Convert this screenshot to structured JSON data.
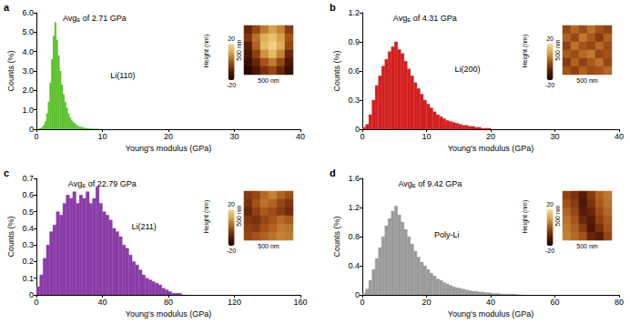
{
  "chart_data": [
    {
      "type": "histogram",
      "panel": "a",
      "label": "Li(110)",
      "avg_label": "Avg",
      "avg_subscript": "E",
      "avg_text": "of 2.71 GPa",
      "x_label": "Young's modulus (GPa)",
      "y_label": "Counts (%)",
      "color": "#5cc12e",
      "bins": [
        0,
        0.25,
        0.5,
        0.75,
        1,
        1.25,
        1.5,
        1.75,
        2,
        2.25,
        2.5,
        2.75,
        3,
        3.25,
        3.5,
        3.75,
        4,
        4.25,
        4.5,
        4.75,
        5,
        5.25,
        5.5,
        5.75,
        6,
        6.25,
        6.5,
        6.75,
        7,
        7.25,
        7.5,
        7.75,
        8,
        8.25,
        8.5,
        8.75,
        9,
        9.25,
        9.5,
        9.75,
        10
      ],
      "counts": [
        0,
        0.02,
        0.05,
        0.1,
        0.2,
        0.4,
        0.8,
        1.4,
        2.4,
        3.6,
        4.8,
        5.5,
        4.6,
        3.8,
        3.0,
        2.3,
        1.8,
        1.4,
        1.1,
        0.8,
        0.6,
        0.45,
        0.35,
        0.28,
        0.2,
        0.15,
        0.12,
        0.1,
        0.08,
        0.06,
        0.05,
        0.04,
        0.03,
        0.02,
        0.02,
        0.01,
        0.01,
        0.01,
        0,
        0
      ],
      "xlim": [
        0,
        40
      ],
      "xticks": [
        0,
        10,
        20,
        30,
        40
      ],
      "ylim": [
        0,
        6
      ],
      "yticks": [
        0,
        {
          "value": 1,
          "label": "1.0"
        },
        {
          "value": 2,
          "label": "2.0"
        },
        {
          "value": 3,
          "label": "3.0"
        },
        {
          "value": 4,
          "label": "4.0"
        },
        {
          "value": 5,
          "label": "5.0"
        },
        {
          "value": 6,
          "label": "6.0"
        }
      ],
      "grid": false,
      "inset": {
        "type": "heatmap",
        "cells": [
          [
            -8,
            -2,
            5,
            10,
            6,
            -4
          ],
          [
            -5,
            4,
            12,
            15,
            10,
            0
          ],
          [
            -10,
            2,
            14,
            18,
            12,
            -2
          ],
          [
            -12,
            -3,
            8,
            14,
            6,
            -8
          ],
          [
            -15,
            -8,
            0,
            5,
            -2,
            -12
          ],
          [
            -18,
            -12,
            -6,
            -2,
            -8,
            -15
          ]
        ],
        "colorbar_range": [
          -20,
          20
        ],
        "colorbar_ticks": [
          -20,
          20
        ],
        "colorbar_label": "Height (nm)",
        "scale_x": "500 nm",
        "scale_y": "500 nm"
      }
    },
    {
      "type": "histogram",
      "panel": "b",
      "label": "Li(200)",
      "avg_label": "Avg",
      "avg_subscript": "E",
      "avg_text": "of 4.31 GPa",
      "x_label": "Young's modulus (GPa)",
      "y_label": "Counts (%)",
      "color": "#d42020",
      "bins": [
        0,
        0.5,
        1,
        1.5,
        2,
        2.5,
        3,
        3.5,
        4,
        4.5,
        5,
        5.5,
        6,
        6.5,
        7,
        7.5,
        8,
        8.5,
        9,
        9.5,
        10,
        10.5,
        11,
        11.5,
        12,
        12.5,
        13,
        13.5,
        14,
        14.5,
        15,
        15.5,
        16,
        16.5,
        17,
        17.5,
        18,
        18.5,
        19,
        19.5,
        20
      ],
      "counts": [
        0.02,
        0.05,
        0.15,
        0.3,
        0.45,
        0.55,
        0.65,
        0.72,
        0.8,
        0.85,
        0.9,
        0.82,
        0.78,
        0.7,
        0.62,
        0.55,
        0.48,
        0.42,
        0.36,
        0.3,
        0.26,
        0.22,
        0.18,
        0.15,
        0.13,
        0.11,
        0.09,
        0.08,
        0.07,
        0.06,
        0.05,
        0.04,
        0.04,
        0.03,
        0.03,
        0.02,
        0.02,
        0.01,
        0.01,
        0.01
      ],
      "xlim": [
        0,
        40
      ],
      "xticks": [
        0,
        10,
        20,
        30,
        40
      ],
      "ylim": [
        0,
        1.2
      ],
      "yticks": [
        0,
        0.3,
        0.6,
        0.9,
        1.2
      ],
      "grid": false,
      "inset": {
        "type": "heatmap",
        "cells": [
          [
            -2,
            3,
            -1,
            4,
            0,
            -3
          ],
          [
            2,
            -2,
            5,
            1,
            -4,
            2
          ],
          [
            -3,
            4,
            0,
            -2,
            3,
            -1
          ],
          [
            1,
            -1,
            3,
            5,
            -2,
            0
          ],
          [
            -4,
            2,
            -3,
            1,
            4,
            -2
          ],
          [
            0,
            -3,
            2,
            -1,
            0,
            3
          ]
        ],
        "colorbar_range": [
          -20,
          20
        ],
        "colorbar_ticks": [
          -20,
          20
        ],
        "colorbar_label": "Height (nm)",
        "scale_x": "500 nm",
        "scale_y": "500 nm"
      }
    },
    {
      "type": "histogram",
      "panel": "c",
      "label": "Li(211)",
      "avg_label": "Avg",
      "avg_subscript": "E",
      "avg_text": "of 22.79 GPa",
      "x_label": "Young's modulus (GPa)",
      "y_label": "Counts (%)",
      "color": "#8a3ca8",
      "bins": [
        0,
        2,
        4,
        6,
        8,
        10,
        12,
        14,
        16,
        18,
        20,
        22,
        24,
        26,
        28,
        30,
        32,
        34,
        36,
        38,
        40,
        42,
        44,
        46,
        48,
        50,
        52,
        54,
        56,
        58,
        60,
        62,
        64,
        66,
        68,
        70,
        72,
        74,
        76,
        78,
        80,
        82,
        84,
        86,
        88,
        90
      ],
      "counts": [
        0.05,
        0.12,
        0.22,
        0.3,
        0.38,
        0.42,
        0.5,
        0.48,
        0.55,
        0.6,
        0.58,
        0.62,
        0.55,
        0.6,
        0.58,
        0.62,
        0.55,
        0.58,
        0.65,
        0.55,
        0.5,
        0.48,
        0.45,
        0.4,
        0.38,
        0.35,
        0.3,
        0.28,
        0.24,
        0.2,
        0.18,
        0.15,
        0.12,
        0.1,
        0.09,
        0.08,
        0.07,
        0.06,
        0.04,
        0.03,
        0.02,
        0.01,
        0.01,
        0.01,
        0
      ],
      "xlim": [
        0,
        160
      ],
      "xticks": [
        0,
        40,
        80,
        120,
        160
      ],
      "ylim": [
        0,
        0.7
      ],
      "yticks": [
        0,
        0.1,
        0.2,
        0.3,
        0.4,
        0.5,
        0.6,
        0.7
      ],
      "grid": false,
      "inset": {
        "type": "heatmap",
        "cells": [
          [
            -4,
            -2,
            3,
            6,
            2,
            -1
          ],
          [
            -6,
            0,
            4,
            2,
            -2,
            -5
          ],
          [
            -8,
            -3,
            1,
            -1,
            -4,
            -7
          ],
          [
            -5,
            -6,
            -2,
            0,
            3,
            1
          ],
          [
            -3,
            -4,
            0,
            2,
            5,
            4
          ],
          [
            -2,
            0,
            2,
            4,
            6,
            5
          ]
        ],
        "colorbar_range": [
          -20,
          20
        ],
        "colorbar_ticks": [
          -20,
          20
        ],
        "colorbar_label": "Height (nm)",
        "scale_x": "500 nm",
        "scale_y": "500 nm"
      }
    },
    {
      "type": "histogram",
      "panel": "d",
      "label": "Poly-Li",
      "avg_label": "Avg",
      "avg_subscript": "E",
      "avg_text": "of 9.42 GPa",
      "x_label": "Young's modulus (GPa)",
      "y_label": "Counts (%)",
      "color": "#9b9b9b",
      "bins": [
        0,
        1,
        2,
        3,
        4,
        5,
        6,
        7,
        8,
        9,
        10,
        11,
        12,
        13,
        14,
        15,
        16,
        17,
        18,
        19,
        20,
        21,
        22,
        23,
        24,
        25,
        26,
        27,
        28,
        29,
        30,
        31,
        32,
        33,
        34,
        35,
        36,
        37,
        38,
        39,
        40,
        41,
        42,
        43,
        44,
        45,
        46,
        47,
        48,
        49,
        50
      ],
      "counts": [
        0.02,
        0.08,
        0.2,
        0.35,
        0.5,
        0.65,
        0.8,
        0.95,
        1.05,
        1.15,
        1.22,
        1.1,
        1.0,
        0.9,
        0.8,
        0.7,
        0.6,
        0.52,
        0.45,
        0.4,
        0.35,
        0.3,
        0.26,
        0.22,
        0.2,
        0.17,
        0.15,
        0.13,
        0.11,
        0.1,
        0.09,
        0.08,
        0.07,
        0.06,
        0.05,
        0.05,
        0.04,
        0.04,
        0.03,
        0.03,
        0.02,
        0.02,
        0.02,
        0.01,
        0.01,
        0.01,
        0.01,
        0.01,
        0,
        0
      ],
      "xlim": [
        0,
        80
      ],
      "xticks": [
        0,
        20,
        40,
        60,
        80
      ],
      "ylim": [
        0,
        1.6
      ],
      "yticks": [
        0,
        0.4,
        0.8,
        1.2,
        1.6
      ],
      "grid": false,
      "inset": {
        "type": "heatmap",
        "cells": [
          [
            -3,
            -6,
            -10,
            -4,
            2,
            5
          ],
          [
            0,
            -4,
            -12,
            -6,
            1,
            4
          ],
          [
            2,
            -2,
            -10,
            -8,
            -1,
            3
          ],
          [
            4,
            0,
            -8,
            -10,
            -3,
            1
          ],
          [
            5,
            2,
            -4,
            -12,
            -6,
            0
          ],
          [
            6,
            3,
            0,
            -8,
            -10,
            -2
          ]
        ],
        "colorbar_range": [
          -20,
          20
        ],
        "colorbar_ticks": [
          -20,
          20
        ],
        "colorbar_label": "Height (nm)",
        "scale_x": "500 nm",
        "scale_y": "500 nm"
      }
    }
  ]
}
